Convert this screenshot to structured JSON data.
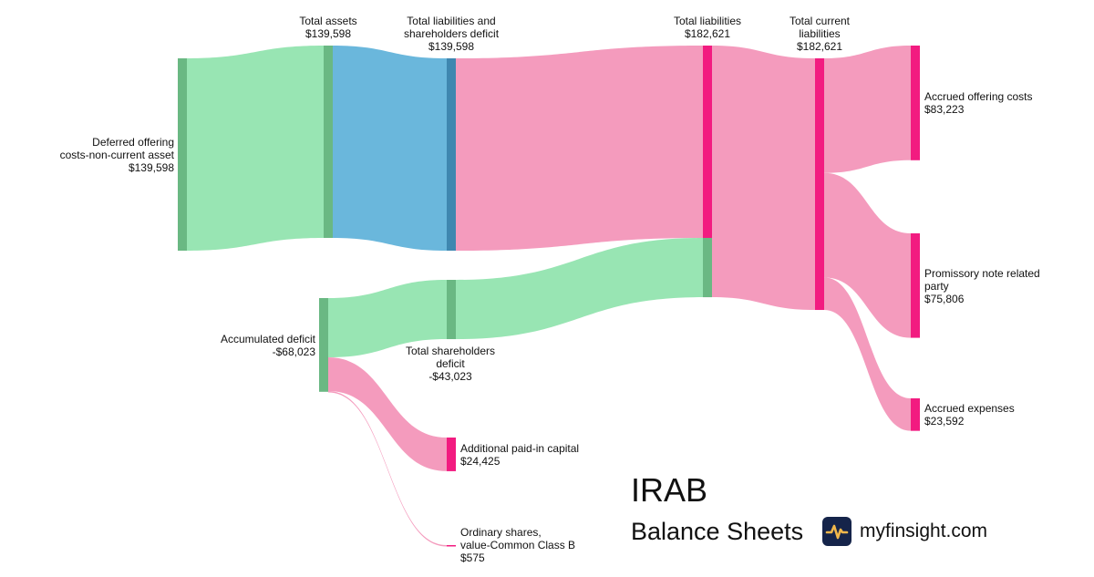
{
  "chart_data": {
    "type": "sankey",
    "nodes": [
      {
        "id": "deferred",
        "name": "Deferred offering\ncosts-non-current asset",
        "value": "$139,598",
        "color": "#6ab883"
      },
      {
        "id": "total_assets",
        "name": "Total assets",
        "value": "$139,598",
        "color": "#6ab883"
      },
      {
        "id": "tlsd",
        "name": "Total liabilities and\nshareholders deficit",
        "value": "$139,598",
        "color": "#3f87b0"
      },
      {
        "id": "total_liabilities",
        "name": "Total liabilities",
        "value": "$182,621",
        "color": "#f21b80"
      },
      {
        "id": "tcl",
        "name": "Total current\nliabilities",
        "value": "$182,621",
        "color": "#f21b80"
      },
      {
        "id": "aoc",
        "name": "Accrued offering costs",
        "value": "$83,223",
        "color": "#f21b80"
      },
      {
        "id": "pnrp",
        "name": "Promissory note related\nparty",
        "value": "$75,806",
        "color": "#f21b80"
      },
      {
        "id": "ae",
        "name": "Accrued expenses",
        "value": "$23,592",
        "color": "#f21b80"
      },
      {
        "id": "acc_def",
        "name": "Accumulated deficit",
        "value": "-$68,023",
        "color": "#6ab883"
      },
      {
        "id": "tsd",
        "name": "Total shareholders\ndeficit",
        "value": "-$43,023",
        "color": "#6ab883"
      },
      {
        "id": "apic",
        "name": "Additional paid-in capital",
        "value": "$24,425",
        "color": "#f21b80"
      },
      {
        "id": "ordinary",
        "name": "Ordinary shares,\nvalue-Common Class B",
        "value": "$575",
        "color": "#f21b80"
      }
    ],
    "links": [
      {
        "source": "deferred",
        "target": "total_assets",
        "value": 139598,
        "color": "#98e5b3"
      },
      {
        "source": "total_assets",
        "target": "tlsd",
        "value": 139598,
        "color": "#6ab7dc"
      },
      {
        "source": "tlsd",
        "target": "total_liabilities",
        "value": 139598,
        "color": "#f49bbd"
      },
      {
        "source": "tsd",
        "target": "total_liabilities",
        "value": 43023,
        "color": "#98e5b3"
      },
      {
        "source": "acc_def",
        "target": "tsd",
        "value": 43023,
        "color": "#98e5b3"
      },
      {
        "source": "acc_def",
        "target": "apic",
        "value": 24425,
        "color": "#f49bbd"
      },
      {
        "source": "acc_def",
        "target": "ordinary",
        "value": 575,
        "color": "#f49bbd"
      },
      {
        "source": "total_liabilities",
        "target": "tcl",
        "value": 182621,
        "color": "#f49bbd"
      },
      {
        "source": "tcl",
        "target": "aoc",
        "value": 83223,
        "color": "#f49bbd"
      },
      {
        "source": "tcl",
        "target": "pnrp",
        "value": 75806,
        "color": "#f49bbd"
      },
      {
        "source": "tcl",
        "target": "ae",
        "value": 23592,
        "color": "#f49bbd"
      }
    ]
  },
  "brand": {
    "ticker": "IRAB",
    "subtitle": "Balance Sheets",
    "site": "myfinsight.com",
    "logo_icon": "pulse-line-icon",
    "logo_bg": "#15244a",
    "logo_fg": "#f2b84b"
  }
}
